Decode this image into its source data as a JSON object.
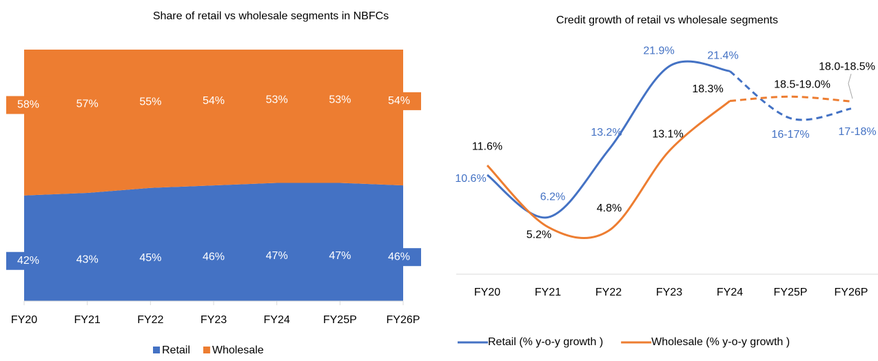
{
  "chart_data": [
    {
      "type": "area",
      "title": "Share of retail vs wholesale segments in NBFCs",
      "categories": [
        "FY20",
        "FY21",
        "FY22",
        "FY23",
        "FY24",
        "FY25P",
        "FY26P"
      ],
      "series": [
        {
          "name": "Retail",
          "color": "#4472c4",
          "values": [
            42,
            43,
            45,
            46,
            47,
            47,
            46
          ],
          "value_labels": [
            "42%",
            "43%",
            "45%",
            "46%",
            "47%",
            "47%",
            "46%"
          ]
        },
        {
          "name": "Wholesale",
          "color": "#ed7d31",
          "values": [
            58,
            57,
            55,
            54,
            53,
            53,
            54
          ],
          "value_labels": [
            "58%",
            "57%",
            "55%",
            "54%",
            "53%",
            "53%",
            "54%"
          ]
        }
      ],
      "ylim": [
        0,
        100
      ],
      "stacked": true,
      "legend": "bottom"
    },
    {
      "type": "line",
      "title": "Credit growth of retail vs wholesale segments",
      "categories": [
        "FY20",
        "FY21",
        "FY22",
        "FY23",
        "FY24",
        "FY25P",
        "FY26P"
      ],
      "series": [
        {
          "name": "Retail (% y-o-y growth )",
          "color": "#4472c4",
          "values": [
            10.6,
            6.2,
            13.2,
            21.9,
            21.4,
            16.5,
            17.5
          ],
          "value_labels": [
            "10.6%",
            "6.2%",
            "13.2%",
            "21.9%",
            "21.4%",
            "16-17%",
            "17-18%"
          ]
        },
        {
          "name": "Wholesale (% y-o-y growth )",
          "color": "#ed7d31",
          "values": [
            11.6,
            5.2,
            4.8,
            13.1,
            18.3,
            18.75,
            18.25
          ],
          "value_labels": [
            "11.6%",
            "5.2%",
            "4.8%",
            "13.1%",
            "18.3%",
            "18.5-19.0%",
            "18.0-18.5%"
          ]
        }
      ],
      "ylim": [
        0,
        25
      ],
      "legend": "bottom"
    }
  ]
}
